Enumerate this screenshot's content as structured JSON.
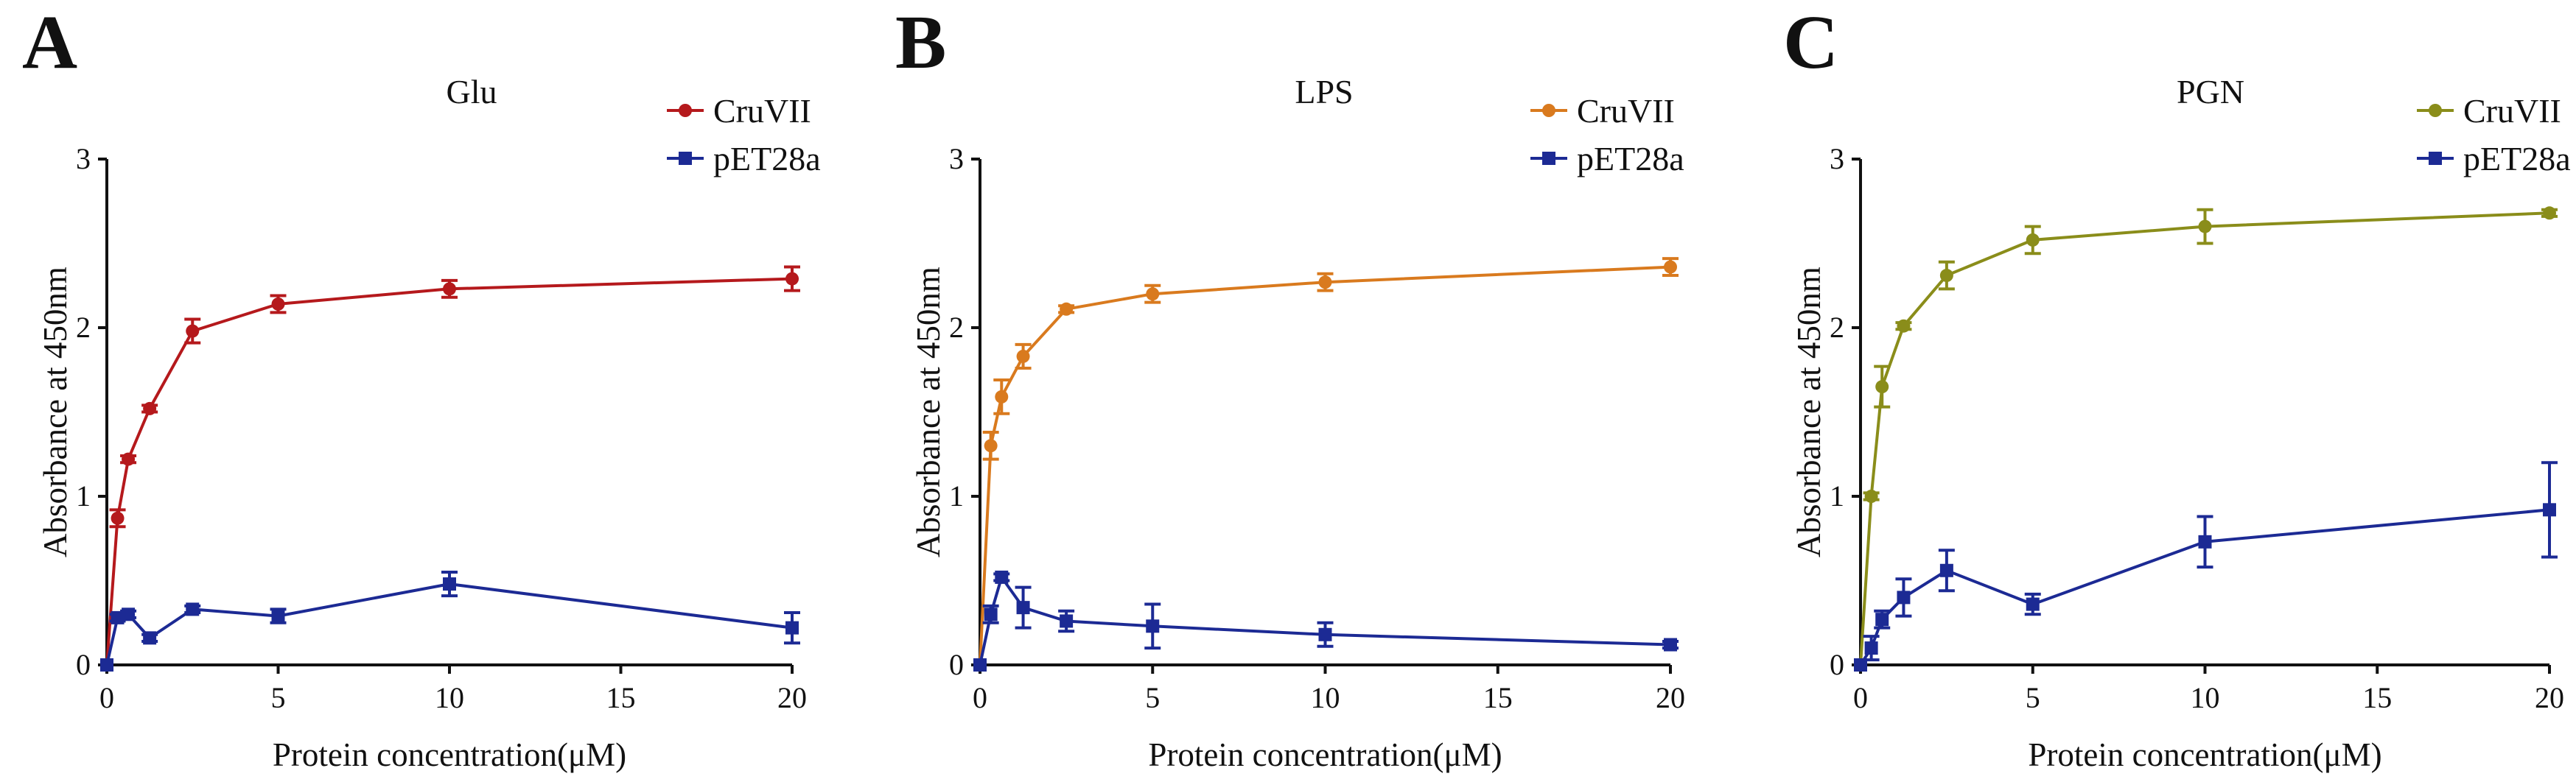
{
  "chart_data": [
    {
      "panel": "A",
      "type": "line",
      "title": "Glu",
      "xlabel": "Protein concentration(μM)",
      "ylabel": "Absorbance at 450nm",
      "xlim": [
        0,
        20
      ],
      "ylim": [
        0,
        3
      ],
      "xticks": [
        "0",
        "5",
        "10",
        "15",
        "20"
      ],
      "yticks": [
        "0",
        "1",
        "2",
        "3"
      ],
      "legend_position": "top-right",
      "series": [
        {
          "name": "CruVII",
          "color": "#b5191c",
          "marker": "circle",
          "x": [
            0,
            0.3125,
            0.625,
            1.25,
            2.5,
            5,
            10,
            20
          ],
          "y": [
            0.0,
            0.87,
            1.22,
            1.52,
            1.98,
            2.14,
            2.23,
            2.29
          ],
          "err": [
            0.0,
            0.05,
            0.02,
            0.02,
            0.07,
            0.05,
            0.05,
            0.07
          ]
        },
        {
          "name": "pET28a",
          "color": "#1c2a94",
          "marker": "square",
          "x": [
            0,
            0.3125,
            0.625,
            1.25,
            2.5,
            5,
            10,
            20
          ],
          "y": [
            0.0,
            0.28,
            0.3,
            0.16,
            0.33,
            0.29,
            0.48,
            0.22
          ],
          "err": [
            0.0,
            0.02,
            0.02,
            0.02,
            0.02,
            0.04,
            0.07,
            0.09
          ]
        }
      ]
    },
    {
      "panel": "B",
      "type": "line",
      "title": "LPS",
      "xlabel": "Protein concentration(μM)",
      "ylabel": "Absorbance at 450nm",
      "xlim": [
        0,
        20
      ],
      "ylim": [
        0,
        3
      ],
      "xticks": [
        "0",
        "5",
        "10",
        "15",
        "20"
      ],
      "yticks": [
        "0",
        "1",
        "2",
        "3"
      ],
      "legend_position": "top-right",
      "series": [
        {
          "name": "CruVII",
          "color": "#d97a1e",
          "marker": "circle",
          "x": [
            0,
            0.3125,
            0.625,
            1.25,
            2.5,
            5,
            10,
            20
          ],
          "y": [
            0.0,
            1.3,
            1.59,
            1.83,
            2.11,
            2.2,
            2.27,
            2.36
          ],
          "err": [
            0.0,
            0.08,
            0.1,
            0.07,
            0.02,
            0.05,
            0.05,
            0.05
          ]
        },
        {
          "name": "pET28a",
          "color": "#1c2a94",
          "marker": "square",
          "x": [
            0,
            0.3125,
            0.625,
            1.25,
            2.5,
            5,
            10,
            20
          ],
          "y": [
            0.0,
            0.3,
            0.52,
            0.34,
            0.26,
            0.23,
            0.18,
            0.12
          ],
          "err": [
            0.0,
            0.05,
            0.02,
            0.12,
            0.06,
            0.13,
            0.07,
            0.02
          ]
        }
      ]
    },
    {
      "panel": "C",
      "type": "line",
      "title": "PGN",
      "xlabel": "Protein concentration(μM)",
      "ylabel": "Absorbance at 450nm",
      "xlim": [
        0,
        20
      ],
      "ylim": [
        0,
        3
      ],
      "xticks": [
        "0",
        "5",
        "10",
        "15",
        "20"
      ],
      "yticks": [
        "0",
        "1",
        "2",
        "3"
      ],
      "legend_position": "top-right",
      "series": [
        {
          "name": "CruVII",
          "color": "#8a8d1a",
          "marker": "circle",
          "x": [
            0,
            0.3125,
            0.625,
            1.25,
            2.5,
            5,
            10,
            20
          ],
          "y": [
            0.0,
            1.0,
            1.65,
            2.01,
            2.31,
            2.52,
            2.6,
            2.68
          ],
          "err": [
            0.0,
            0.02,
            0.12,
            0.02,
            0.08,
            0.08,
            0.1,
            0.02
          ]
        },
        {
          "name": "pET28a",
          "color": "#1c2a94",
          "marker": "square",
          "x": [
            0,
            0.3125,
            0.625,
            1.25,
            2.5,
            5,
            10,
            20
          ],
          "y": [
            0.0,
            0.1,
            0.27,
            0.4,
            0.56,
            0.36,
            0.73,
            0.92
          ],
          "err": [
            0.0,
            0.07,
            0.05,
            0.11,
            0.12,
            0.06,
            0.15,
            0.28
          ]
        }
      ]
    }
  ]
}
